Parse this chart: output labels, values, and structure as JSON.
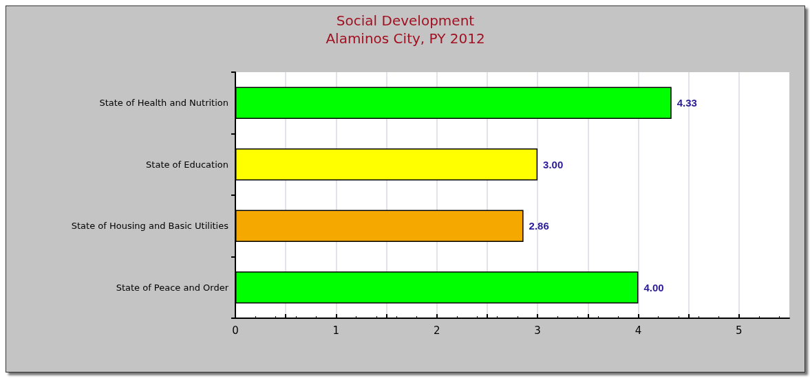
{
  "chart_data": {
    "type": "bar",
    "orientation": "horizontal",
    "title": "Social Development",
    "subtitle": "Alaminos City, PY 2012",
    "categories": [
      "State of Health and Nutrition",
      "State of Education",
      "State of Housing and Basic Utilities",
      "State of Peace and Order"
    ],
    "values": [
      4.33,
      3.0,
      2.86,
      4.0
    ],
    "value_labels": [
      "4.33",
      "3.00",
      "2.86",
      "4.00"
    ],
    "colors": [
      "#00ff00",
      "#ffff00",
      "#f5a800",
      "#00ff00"
    ],
    "xlim": [
      0,
      5.5
    ],
    "xticks": [
      0,
      {
        "value": 0.5,
        "label": null
      },
      1,
      {
        "value": 1.5,
        "label": null
      },
      2,
      {
        "value": 2.5,
        "label": null
      },
      3,
      {
        "value": 3.5,
        "label": null
      },
      4,
      {
        "value": 4.5,
        "label": null
      },
      5
    ],
    "grid": "x"
  }
}
